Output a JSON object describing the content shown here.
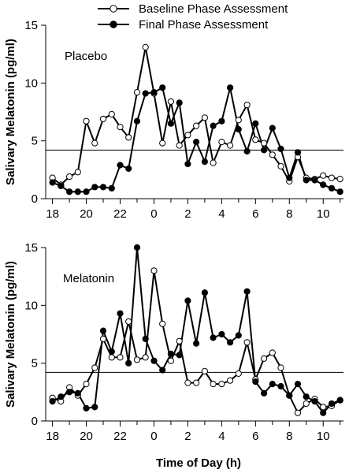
{
  "chart_data": [
    {
      "type": "line",
      "panel_label": "Placebo",
      "ylabel": "Salivary Melatonin (pg/ml)",
      "xlabel": "",
      "ylim": [
        0,
        15
      ],
      "yticks": [
        0,
        5,
        10,
        15
      ],
      "xlim": [
        17.6,
        35.2
      ],
      "xticks": [
        18,
        20,
        22,
        24,
        26,
        28,
        30,
        32,
        34
      ],
      "xticklabels": [
        "18",
        "20",
        "22",
        "0",
        "2",
        "4",
        "6",
        "8",
        "10"
      ],
      "threshold": 4.2,
      "legend": {
        "position": "top"
      },
      "series": [
        {
          "name": "Baseline Phase Assessment",
          "marker": "open-circle",
          "x": [
            18,
            18.5,
            19,
            19.5,
            20,
            20.5,
            21,
            21.5,
            22,
            22.5,
            23,
            23.5,
            24,
            24.5,
            25,
            25.5,
            26,
            26.5,
            27,
            27.5,
            28,
            28.5,
            29,
            29.5,
            30,
            30.5,
            31,
            31.5,
            32,
            32.5,
            33,
            33.5,
            34,
            34.5,
            35
          ],
          "y": [
            1.8,
            1.2,
            1.9,
            2.3,
            6.7,
            4.8,
            6.9,
            7.3,
            6.2,
            5.3,
            9.2,
            13.1,
            9.1,
            4.8,
            8.4,
            4.6,
            5.5,
            6.3,
            7.0,
            3.1,
            4.9,
            4.6,
            6.8,
            8.1,
            5.1,
            4.8,
            3.8,
            2.8,
            1.5,
            3.6,
            1.8,
            1.7,
            2.0,
            1.8,
            1.7
          ]
        },
        {
          "name": "Final Phase Assessment",
          "marker": "filled-circle",
          "x": [
            18,
            18.5,
            19,
            19.5,
            20,
            20.5,
            21,
            21.5,
            22,
            22.5,
            23,
            23.5,
            24,
            24.5,
            25,
            25.5,
            26,
            26.5,
            27,
            27.5,
            28,
            28.5,
            29,
            29.5,
            30,
            30.5,
            31,
            31.5,
            32,
            32.5,
            33,
            33.5,
            34,
            34.5,
            35
          ],
          "y": [
            1.4,
            1.1,
            0.6,
            0.6,
            0.6,
            1.0,
            1.0,
            0.9,
            2.9,
            2.6,
            6.7,
            9.1,
            9.2,
            9.6,
            6.5,
            8.3,
            3.0,
            4.9,
            3.2,
            6.3,
            6.7,
            9.6,
            6.0,
            4.1,
            6.5,
            4.2,
            6.1,
            4.3,
            1.8,
            4.0,
            1.6,
            1.6,
            1.2,
            0.9,
            0.6
          ]
        }
      ]
    },
    {
      "type": "line",
      "panel_label": "Melatonin",
      "ylabel": "Salivary Melatonin (pg/ml)",
      "xlabel": "Time of Day (h)",
      "ylim": [
        0,
        15
      ],
      "yticks": [
        0,
        5,
        10,
        15
      ],
      "xlim": [
        17.6,
        35.2
      ],
      "xticks": [
        18,
        20,
        22,
        24,
        26,
        28,
        30,
        32,
        34
      ],
      "xticklabels": [
        "18",
        "20",
        "22",
        "0",
        "2",
        "4",
        "6",
        "8",
        "10"
      ],
      "threshold": 4.2,
      "series": [
        {
          "name": "Baseline Phase Assessment",
          "marker": "open-circle",
          "x": [
            18,
            18.5,
            19,
            19.5,
            20,
            20.5,
            21,
            21.5,
            22,
            22.5,
            23,
            23.5,
            24,
            24.5,
            25,
            25.5,
            26,
            26.5,
            27,
            27.5,
            28,
            28.5,
            29,
            29.5,
            30,
            30.5,
            31,
            31.5,
            32,
            32.5,
            33,
            33.5,
            34,
            34.5,
            35
          ],
          "y": [
            2.0,
            1.7,
            2.9,
            2.2,
            3.2,
            4.6,
            7.1,
            5.5,
            5.5,
            8.6,
            5.3,
            5.5,
            13.0,
            8.4,
            5.2,
            6.9,
            3.3,
            3.3,
            4.3,
            3.2,
            3.2,
            3.5,
            4.1,
            6.8,
            3.6,
            5.4,
            5.9,
            4.6,
            2.2,
            0.7,
            1.5,
            1.9,
            1.2,
            1.3,
            1.8
          ]
        },
        {
          "name": "Final Phase Assessment",
          "marker": "filled-circle",
          "x": [
            18,
            18.5,
            19,
            19.5,
            20,
            20.5,
            21,
            21.5,
            22,
            22.5,
            23,
            23.5,
            24,
            24.5,
            25,
            25.5,
            26,
            26.5,
            27,
            27.5,
            28,
            28.5,
            29,
            29.5,
            30,
            30.5,
            31,
            31.5,
            32,
            32.5,
            33,
            33.5,
            34,
            34.5,
            35
          ],
          "y": [
            1.7,
            2.1,
            2.5,
            2.4,
            1.1,
            1.2,
            7.8,
            6.0,
            9.3,
            5.0,
            15.0,
            7.1,
            5.2,
            4.4,
            5.8,
            5.7,
            10.4,
            6.7,
            11.1,
            7.2,
            7.5,
            6.8,
            7.4,
            11.2,
            3.4,
            2.4,
            3.2,
            3.0,
            2.2,
            3.2,
            2.1,
            1.7,
            0.7,
            1.5,
            1.8
          ]
        }
      ]
    }
  ]
}
